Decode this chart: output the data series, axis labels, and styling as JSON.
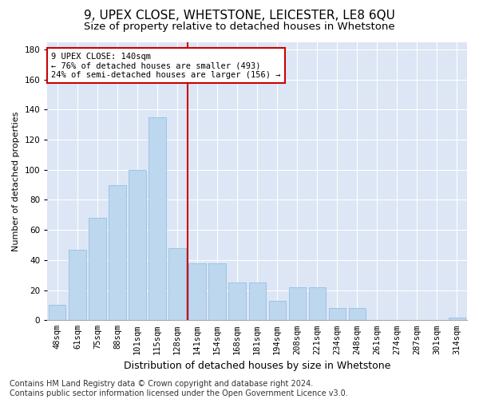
{
  "title": "9, UPEX CLOSE, WHETSTONE, LEICESTER, LE8 6QU",
  "subtitle": "Size of property relative to detached houses in Whetstone",
  "xlabel": "Distribution of detached houses by size in Whetstone",
  "ylabel": "Number of detached properties",
  "categories": [
    "48sqm",
    "61sqm",
    "75sqm",
    "88sqm",
    "101sqm",
    "115sqm",
    "128sqm",
    "141sqm",
    "154sqm",
    "168sqm",
    "181sqm",
    "194sqm",
    "208sqm",
    "221sqm",
    "234sqm",
    "248sqm",
    "261sqm",
    "274sqm",
    "287sqm",
    "301sqm",
    "314sqm"
  ],
  "values": [
    10,
    47,
    68,
    90,
    100,
    135,
    48,
    38,
    38,
    25,
    25,
    13,
    22,
    22,
    8,
    8,
    0,
    0,
    0,
    0,
    2
  ],
  "bar_color": "#bdd7ee",
  "bar_edge_color": "#9dc3e6",
  "vline_x_index": 6.5,
  "vline_color": "#cc0000",
  "annotation_text": "9 UPEX CLOSE: 140sqm\n← 76% of detached houses are smaller (493)\n24% of semi-detached houses are larger (156) →",
  "annotation_box_color": "#ffffff",
  "annotation_box_edge": "#cc0000",
  "ylim": [
    0,
    185
  ],
  "yticks": [
    0,
    20,
    40,
    60,
    80,
    100,
    120,
    140,
    160,
    180
  ],
  "plot_bg_color": "#dce6f5",
  "grid_color": "#ffffff",
  "footer": "Contains HM Land Registry data © Crown copyright and database right 2024.\nContains public sector information licensed under the Open Government Licence v3.0.",
  "title_fontsize": 11,
  "subtitle_fontsize": 9.5,
  "xlabel_fontsize": 9,
  "ylabel_fontsize": 8,
  "tick_fontsize": 7.5,
  "footer_fontsize": 7
}
